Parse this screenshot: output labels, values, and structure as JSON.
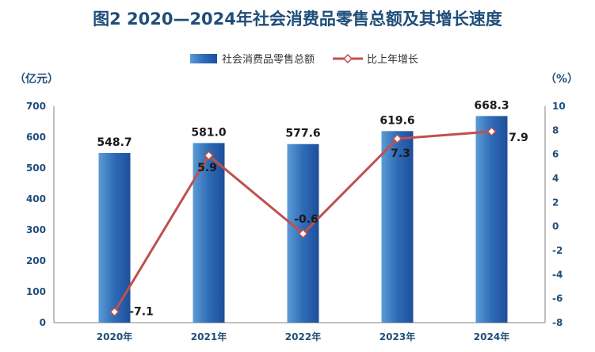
{
  "title": "图2  2020—2024年社会消费品零售总额及其增长速度",
  "chart_data": {
    "type": "bar+line",
    "categories": [
      "2020年",
      "2021年",
      "2022年",
      "2023年",
      "2024年"
    ],
    "series": [
      {
        "name": "社会消费品零售总额",
        "type": "bar",
        "axis": "left",
        "color": "#2e6bb7",
        "values": [
          548.7,
          581.0,
          577.6,
          619.6,
          668.3
        ],
        "labels": [
          "548.7",
          "581.0",
          "577.6",
          "619.6",
          "668.3"
        ]
      },
      {
        "name": "比上年增长",
        "type": "line",
        "axis": "right",
        "color": "#c0504d",
        "values": [
          -7.1,
          5.9,
          -0.6,
          7.3,
          7.9
        ],
        "labels": [
          "-7.1",
          "5.9",
          "-0.6",
          "7.3",
          "7.9"
        ]
      }
    ],
    "y_left": {
      "label": "（亿元）",
      "range": [
        0,
        700
      ],
      "ticks": [
        "0",
        "100",
        "200",
        "300",
        "400",
        "500",
        "600",
        "700"
      ]
    },
    "y_right": {
      "label": "（%）",
      "range": [
        -8,
        10
      ],
      "ticks": [
        "-8",
        "-6",
        "-4",
        "-2",
        "0",
        "2",
        "4",
        "6",
        "8",
        "10"
      ]
    },
    "legend": "top-center",
    "grid": false
  }
}
